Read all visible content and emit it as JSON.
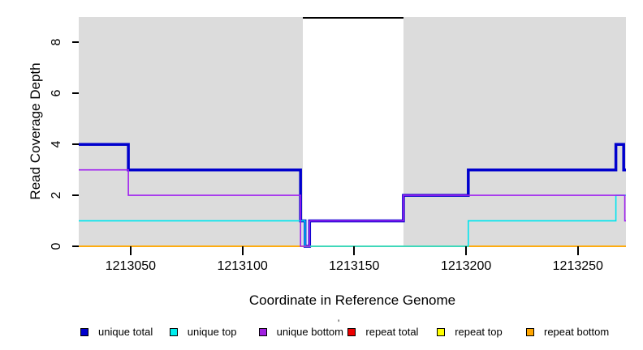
{
  "chart_data": {
    "type": "line",
    "subtype": "step-coverage",
    "title": "",
    "xlabel": "Coordinate in Reference Genome",
    "ylabel": "Read Coverage Depth",
    "xlim": [
      1213026.8,
      1213271.5
    ],
    "ylim": [
      0,
      9
    ],
    "x_ticks": [
      1213050,
      1213100,
      1213150,
      1213200,
      1213250
    ],
    "y_ticks": [
      0,
      2,
      4,
      6,
      8
    ],
    "plot_background": "#dcdcdc",
    "highlight_region": {
      "x_start": 1213127,
      "x_end": 1213172,
      "fill": "#ffffff",
      "top_border": "#000000"
    },
    "series": [
      {
        "name": "unique total",
        "color": "#0000CD",
        "width": 3.5,
        "steps": [
          [
            1213026.8,
            4
          ],
          [
            1213049,
            3
          ],
          [
            1213126,
            1
          ],
          [
            1213128,
            0
          ],
          [
            1213130,
            1
          ],
          [
            1213172,
            2
          ],
          [
            1213201,
            3
          ],
          [
            1213267,
            4
          ],
          [
            1213270.5,
            3
          ]
        ]
      },
      {
        "name": "repeat total",
        "color": "#EE0000",
        "width": 1.6,
        "steps": [
          [
            1213026.8,
            0
          ]
        ]
      },
      {
        "name": "repeat top",
        "color": "#FFFF00",
        "width": 1.6,
        "steps": [
          [
            1213026.8,
            0
          ]
        ]
      },
      {
        "name": "repeat bottom",
        "color": "#FFA500",
        "width": 1.6,
        "steps": [
          [
            1213026.8,
            0
          ]
        ]
      },
      {
        "name": "unique top",
        "color": "#00E5EE",
        "width": 1.6,
        "steps": [
          [
            1213026.8,
            1
          ],
          [
            1213128,
            0
          ],
          [
            1213201,
            1
          ],
          [
            1213267,
            2
          ]
        ]
      },
      {
        "name": "unique bottom",
        "color": "#A020F0",
        "width": 1.6,
        "steps": [
          [
            1213026.8,
            3
          ],
          [
            1213049,
            2
          ],
          [
            1213126,
            0
          ],
          [
            1213130,
            1
          ],
          [
            1213172,
            2
          ],
          [
            1213271,
            1
          ]
        ]
      }
    ],
    "legend": [
      {
        "label": "unique total",
        "color": "#0000CD"
      },
      {
        "label": "unique top",
        "color": "#00EEEE"
      },
      {
        "label": "unique bottom",
        "color": "#A020E0"
      },
      {
        "label": "repeat total",
        "color": "#EE0000"
      },
      {
        "label": "repeat top",
        "color": "#FFFF00"
      },
      {
        "label": "repeat bottom",
        "color": "#FFA500"
      }
    ],
    "legend_position": "bottom"
  },
  "legend_extra": {
    "stray_mark": "'"
  }
}
